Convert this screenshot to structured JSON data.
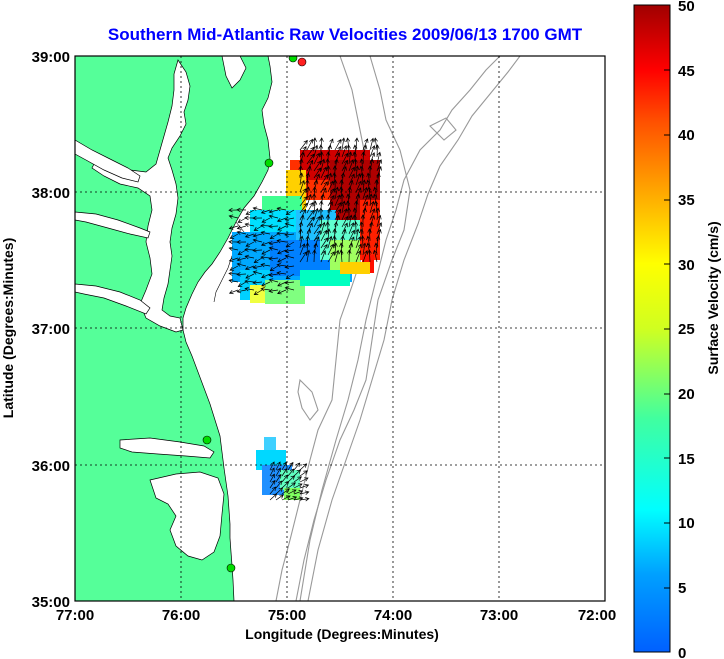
{
  "title": "Southern Mid-Atlantic Raw Velocities 2009/06/13 1700 GMT",
  "xaxis": {
    "label": "Longitude (Degrees:Minutes)",
    "ticks": [
      "77:00",
      "76:00",
      "75:00",
      "74:00",
      "73:00",
      "72:00"
    ]
  },
  "yaxis": {
    "label": "Latitude (Degrees:Minutes)",
    "ticks": [
      "39:00",
      "38:00",
      "37:00",
      "36:00",
      "35:00"
    ]
  },
  "colorbar": {
    "label": "Surface Velocity (cm/s)",
    "ticks": [
      "50",
      "45",
      "40",
      "35",
      "30",
      "25",
      "20",
      "15",
      "10",
      "5",
      "0"
    ],
    "min": 0,
    "max": 50,
    "colormap": [
      "#0000ff",
      "#00ffff",
      "#ffff00",
      "#ff8000",
      "#ff0000",
      "#800000"
    ]
  },
  "colors": {
    "land": "#55ff99",
    "water": "#ffffff",
    "bathymetry": "#999999",
    "stations": "#00dd00",
    "active_station": "#ff2020",
    "vectors": "#000000"
  }
}
